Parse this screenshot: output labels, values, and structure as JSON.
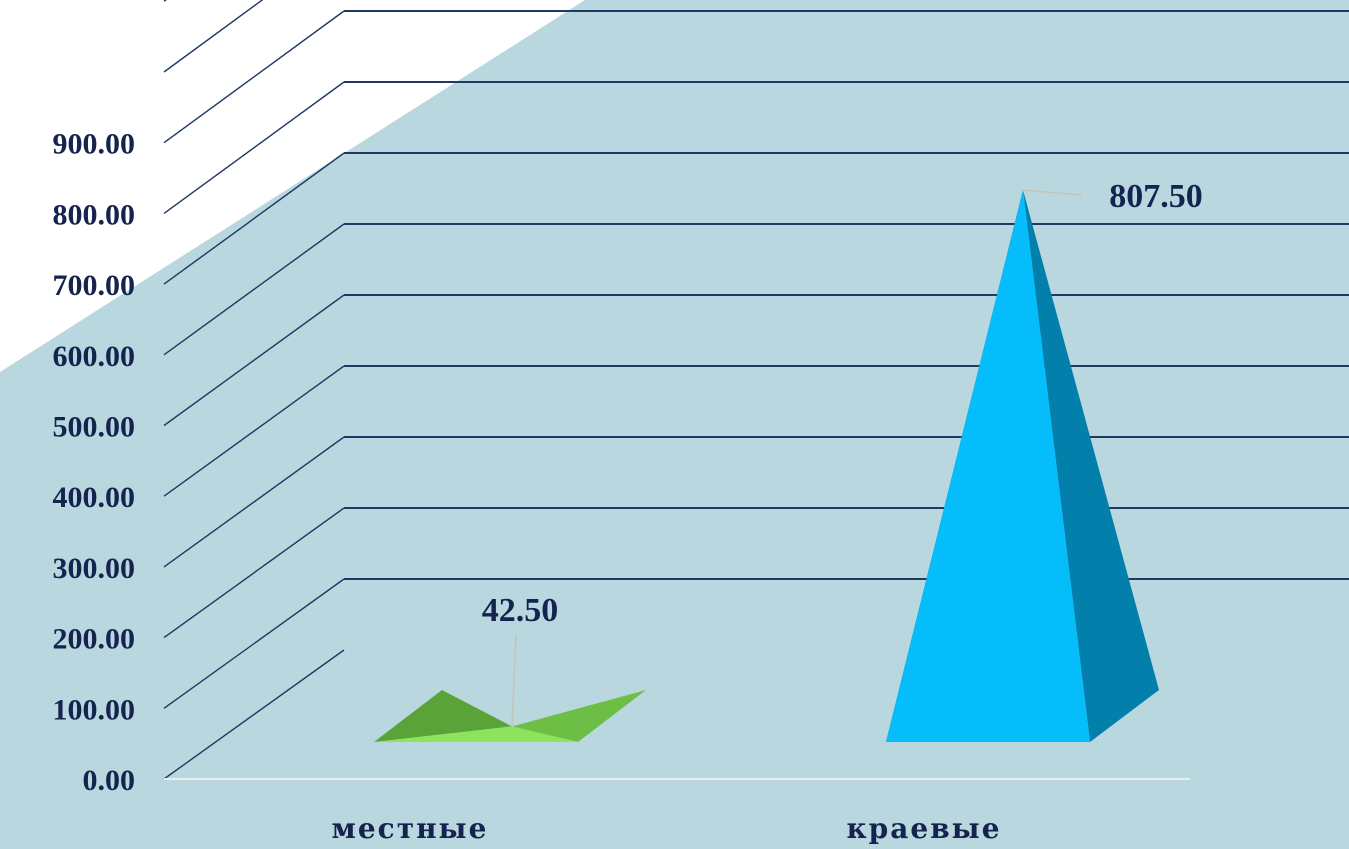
{
  "colors": {
    "background": "#b9d7df",
    "slide_white": "#ffffff",
    "gridline": "#1f3864",
    "text": "#14244f",
    "floor_line": "#e6eef0",
    "leader_line": "#c4c4b4"
  },
  "chart_data": {
    "type": "bar",
    "shape": "3d-pyramid",
    "title": "",
    "xlabel": "",
    "ylabel": "",
    "ylim": [
      0,
      1100
    ],
    "yticks": [
      0,
      100,
      200,
      300,
      400,
      500,
      600,
      700,
      800,
      900
    ],
    "ytick_labels": [
      "0.00",
      "100.00",
      "200.00",
      "300.00",
      "400.00",
      "500.00",
      "600.00",
      "700.00",
      "800.00",
      "900.00"
    ],
    "categories": [
      "местные",
      "краевые"
    ],
    "series": [
      {
        "values": [
          42.5,
          807.5
        ],
        "value_labels": [
          "42.50",
          "807.50"
        ],
        "colors": [
          {
            "front": "#8ee35c",
            "side": "#6cbf44",
            "back": "#5aa338"
          },
          {
            "front": "#05bdfb",
            "side": "#0280ab",
            "back": "#0369a0"
          }
        ]
      }
    ],
    "grid": true,
    "legend": "none"
  }
}
